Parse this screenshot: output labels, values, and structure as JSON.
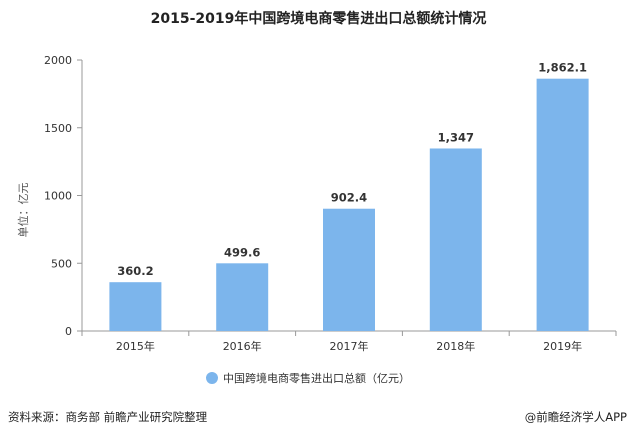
{
  "chart_data": {
    "type": "bar",
    "title": "2015-2019年中国跨境电商零售进出口总额统计情况",
    "ylabel": "单位：亿元",
    "xlabel": "",
    "categories": [
      "2015年",
      "2016年",
      "2017年",
      "2018年",
      "2019年"
    ],
    "series": [
      {
        "name": "中国跨境电商零售进出口总额（亿元）",
        "values": [
          360.2,
          499.6,
          902.4,
          1347,
          1862.1
        ],
        "labels": [
          "360.2",
          "499.6",
          "902.4",
          "1,347",
          "1,862.1"
        ]
      }
    ],
    "ylim": [
      0,
      2000
    ],
    "yticks": [
      0,
      500,
      1000,
      1500,
      2000
    ],
    "grid": false,
    "legend_position": "bottom",
    "bar_color": "#7cb5ec"
  },
  "footer": {
    "source": "资料来源：商务部 前瞻产业研究院整理",
    "credit": "@前瞻经济学人APP"
  }
}
